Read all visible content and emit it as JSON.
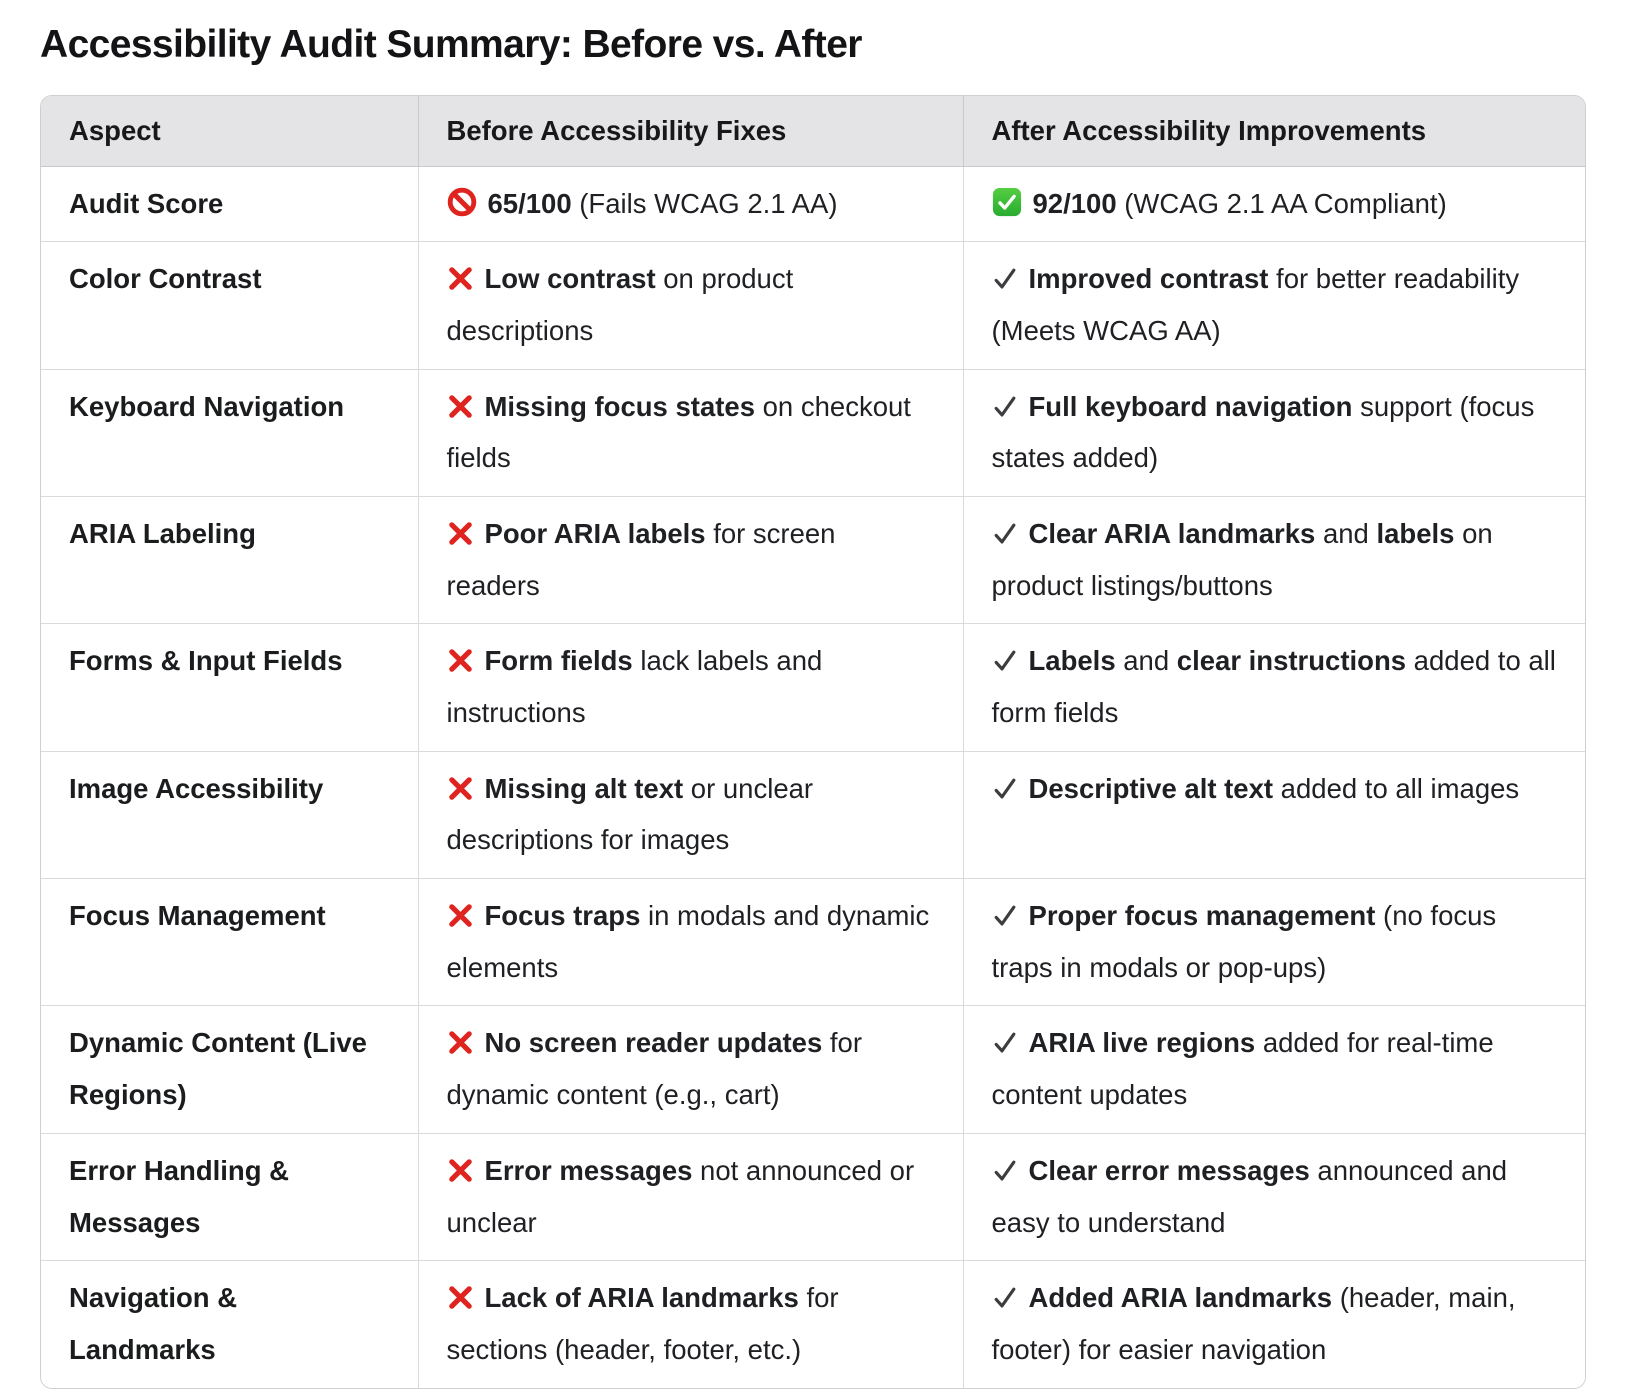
{
  "page": {
    "title": "Accessibility Audit Summary: Before vs. After"
  },
  "colors": {
    "red": "#df2420",
    "green_top": "#55cf42",
    "green_bottom": "#28ab31",
    "check_gray": "#3d3d40",
    "header_bg": "#e4e4e6",
    "border": "#dadadc"
  },
  "table": {
    "headers": [
      "Aspect",
      "Before Accessibility Fixes",
      "After Accessibility Improvements"
    ],
    "rows": [
      {
        "aspect": "Audit Score",
        "before": {
          "icon": "no-entry",
          "segments": [
            {
              "text": "65/100",
              "bold": true
            },
            {
              "text": " (Fails WCAG 2.1 AA)",
              "bold": false
            }
          ]
        },
        "after": {
          "icon": "green-check",
          "segments": [
            {
              "text": "92/100",
              "bold": true
            },
            {
              "text": " (WCAG 2.1 AA Compliant)",
              "bold": false
            }
          ]
        }
      },
      {
        "aspect": "Color Contrast",
        "before": {
          "icon": "red-cross",
          "segments": [
            {
              "text": "Low contrast",
              "bold": true
            },
            {
              "text": " on product descriptions",
              "bold": false
            }
          ]
        },
        "after": {
          "icon": "dark-check",
          "segments": [
            {
              "text": "Improved contrast",
              "bold": true
            },
            {
              "text": " for better readability (Meets WCAG AA)",
              "bold": false
            }
          ]
        }
      },
      {
        "aspect": "Keyboard Navigation",
        "before": {
          "icon": "red-cross",
          "segments": [
            {
              "text": "Missing focus states",
              "bold": true
            },
            {
              "text": " on checkout fields",
              "bold": false
            }
          ]
        },
        "after": {
          "icon": "dark-check",
          "segments": [
            {
              "text": "Full keyboard navigation",
              "bold": true
            },
            {
              "text": " support (focus states added)",
              "bold": false
            }
          ]
        }
      },
      {
        "aspect": "ARIA Labeling",
        "before": {
          "icon": "red-cross",
          "segments": [
            {
              "text": "Poor ARIA labels",
              "bold": true
            },
            {
              "text": " for screen readers",
              "bold": false
            }
          ]
        },
        "after": {
          "icon": "dark-check",
          "segments": [
            {
              "text": "Clear ARIA landmarks",
              "bold": true
            },
            {
              "text": " and ",
              "bold": false
            },
            {
              "text": "labels",
              "bold": true
            },
            {
              "text": " on product listings/buttons",
              "bold": false
            }
          ]
        }
      },
      {
        "aspect": "Forms & Input Fields",
        "before": {
          "icon": "red-cross",
          "segments": [
            {
              "text": "Form fields",
              "bold": true
            },
            {
              "text": " lack labels and instructions",
              "bold": false
            }
          ]
        },
        "after": {
          "icon": "dark-check",
          "segments": [
            {
              "text": "Labels",
              "bold": true
            },
            {
              "text": " and ",
              "bold": false
            },
            {
              "text": "clear instructions",
              "bold": true
            },
            {
              "text": " added to all form fields",
              "bold": false
            }
          ]
        }
      },
      {
        "aspect": "Image Accessibility",
        "before": {
          "icon": "red-cross",
          "segments": [
            {
              "text": "Missing alt text",
              "bold": true
            },
            {
              "text": " or unclear descriptions for images",
              "bold": false
            }
          ]
        },
        "after": {
          "icon": "dark-check",
          "segments": [
            {
              "text": "Descriptive alt text",
              "bold": true
            },
            {
              "text": " added to all images",
              "bold": false
            }
          ]
        }
      },
      {
        "aspect": "Focus Management",
        "before": {
          "icon": "red-cross",
          "segments": [
            {
              "text": "Focus traps",
              "bold": true
            },
            {
              "text": " in modals and dynamic elements",
              "bold": false
            }
          ]
        },
        "after": {
          "icon": "dark-check",
          "segments": [
            {
              "text": "Proper focus management",
              "bold": true
            },
            {
              "text": " (no focus traps in modals or pop-ups)",
              "bold": false
            }
          ]
        }
      },
      {
        "aspect": "Dynamic Content (Live Regions)",
        "before": {
          "icon": "red-cross",
          "segments": [
            {
              "text": "No screen reader updates",
              "bold": true
            },
            {
              "text": " for dynamic content (e.g., cart)",
              "bold": false
            }
          ]
        },
        "after": {
          "icon": "dark-check",
          "segments": [
            {
              "text": "ARIA live regions",
              "bold": true
            },
            {
              "text": " added for real-time content updates",
              "bold": false
            }
          ]
        }
      },
      {
        "aspect": "Error Handling & Messages",
        "before": {
          "icon": "red-cross",
          "segments": [
            {
              "text": "Error messages",
              "bold": true
            },
            {
              "text": " not announced or unclear",
              "bold": false
            }
          ]
        },
        "after": {
          "icon": "dark-check",
          "segments": [
            {
              "text": "Clear error messages",
              "bold": true
            },
            {
              "text": " announced and easy to understand",
              "bold": false
            }
          ]
        }
      },
      {
        "aspect": "Navigation & Landmarks",
        "before": {
          "icon": "red-cross",
          "segments": [
            {
              "text": "Lack of ARIA landmarks",
              "bold": true
            },
            {
              "text": " for sections (header, footer, etc.)",
              "bold": false
            }
          ]
        },
        "after": {
          "icon": "dark-check",
          "segments": [
            {
              "text": "Added ARIA landmarks",
              "bold": true
            },
            {
              "text": " (header, main, footer) for easier navigation",
              "bold": false
            }
          ]
        }
      }
    ]
  }
}
